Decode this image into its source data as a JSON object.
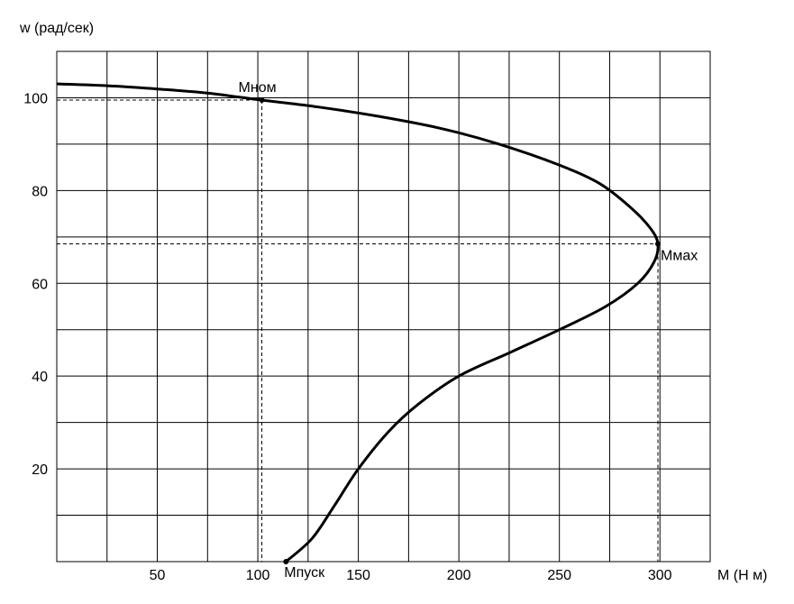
{
  "chart_data": {
    "type": "line",
    "title": "",
    "xlabel": "M (Н м)",
    "ylabel": "w (рад/сек)",
    "xlim": [
      0,
      325
    ],
    "ylim": [
      0,
      110
    ],
    "x_ticks": [
      {
        "value": 50,
        "label": "50"
      },
      {
        "value": 100,
        "label": "100"
      },
      {
        "value": 150,
        "label": "150"
      },
      {
        "value": 200,
        "label": "200"
      },
      {
        "value": 250,
        "label": "250"
      },
      {
        "value": 300,
        "label": "300"
      }
    ],
    "y_ticks": [
      {
        "value": 20,
        "label": "20"
      },
      {
        "value": 40,
        "label": "40"
      },
      {
        "value": 60,
        "label": "60"
      },
      {
        "value": 80,
        "label": "80"
      },
      {
        "value": 100,
        "label": "100"
      }
    ],
    "grid": true,
    "series": [
      {
        "color": "#000000",
        "points": [
          [
            0,
            103
          ],
          [
            25,
            102.6
          ],
          [
            50,
            101.9
          ],
          [
            75,
            101
          ],
          [
            102,
            99.5
          ],
          [
            130,
            98
          ],
          [
            160,
            96
          ],
          [
            190,
            93.5
          ],
          [
            220,
            90
          ],
          [
            250,
            85.5
          ],
          [
            270,
            81.5
          ],
          [
            285,
            76.5
          ],
          [
            295,
            72
          ],
          [
            299,
            68.5
          ],
          [
            297,
            64.5
          ],
          [
            289,
            60
          ],
          [
            273,
            55
          ],
          [
            250,
            50
          ],
          [
            225,
            45
          ],
          [
            200,
            40
          ],
          [
            180,
            34
          ],
          [
            165,
            28
          ],
          [
            150,
            20
          ],
          [
            138,
            12
          ],
          [
            127,
            5
          ],
          [
            114,
            0
          ]
        ]
      }
    ],
    "annotations": [
      {
        "label": "Мном",
        "x": 102,
        "y": 99.5,
        "guides": true
      },
      {
        "label": "Ммах",
        "x": 299,
        "y": 68.5,
        "guides": true
      },
      {
        "label": "Мпуск",
        "x": 114,
        "y": 0,
        "guides": false
      }
    ]
  }
}
